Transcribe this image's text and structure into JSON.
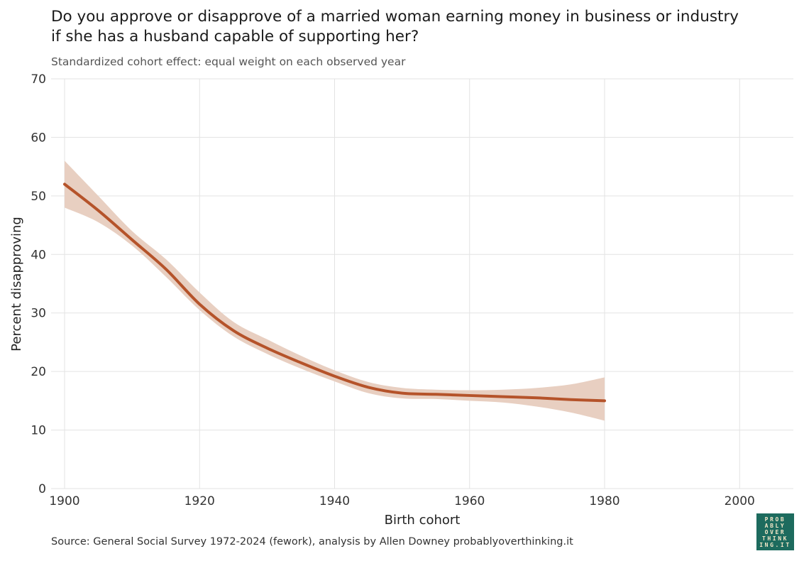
{
  "header": {
    "title_line1": "Do you approve or disapprove of a married woman earning money in business or industry",
    "title_line2": "if she has a husband capable of supporting her?",
    "subtitle": "Standardized cohort effect: equal weight on each observed year"
  },
  "footer": {
    "source": "Source: General Social Survey 1972-2024 (fework), analysis by Allen Downey probablyoverthinking.it",
    "logo_lines": [
      "PROB",
      "ABLY",
      "OVER",
      "THINK",
      "ING.IT"
    ]
  },
  "colors": {
    "line": "#b5532a",
    "band": "#e8cfc1",
    "grid": "#e3e3e3"
  },
  "chart_data": {
    "type": "line",
    "xlabel": "Birth cohort",
    "ylabel": "Percent disapproving",
    "xlim": [
      1900,
      2008
    ],
    "ylim": [
      0,
      70
    ],
    "xticks": [
      1900,
      1920,
      1940,
      1960,
      1980,
      2000
    ],
    "yticks": [
      0,
      10,
      20,
      30,
      40,
      50,
      60,
      70
    ],
    "grid": true,
    "series": [
      {
        "x": [
          1900,
          1905,
          1910,
          1915,
          1920,
          1925,
          1930,
          1935,
          1940,
          1945,
          1950,
          1955,
          1960,
          1965,
          1970,
          1975,
          1980
        ],
        "y": [
          52.0,
          47.5,
          42.5,
          37.5,
          31.5,
          27.0,
          24.0,
          21.5,
          19.2,
          17.3,
          16.3,
          16.1,
          15.9,
          15.7,
          15.5,
          15.2,
          15.0
        ],
        "lower": [
          48.0,
          45.5,
          41.5,
          36.2,
          30.5,
          26.0,
          23.0,
          20.5,
          18.3,
          16.3,
          15.4,
          15.3,
          15.0,
          14.7,
          14.0,
          13.0,
          11.6
        ],
        "upper": [
          56.0,
          50.0,
          44.0,
          39.2,
          33.5,
          28.5,
          25.5,
          22.7,
          20.2,
          18.2,
          17.2,
          16.9,
          16.8,
          16.9,
          17.2,
          17.8,
          19.0
        ]
      }
    ]
  }
}
